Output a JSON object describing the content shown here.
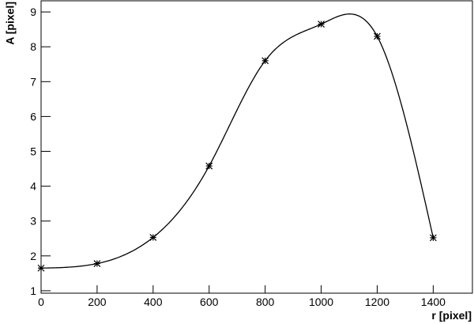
{
  "chart_data": {
    "type": "scatter",
    "curve": "spline",
    "x_label": "r [pixel]",
    "y_label": "A [pixel]",
    "x": [
      0,
      200,
      400,
      600,
      800,
      1000,
      1200,
      1400
    ],
    "values": [
      1.65,
      1.78,
      2.53,
      4.58,
      7.6,
      8.65,
      8.3,
      2.52
    ],
    "color": "#000000",
    "xlim": [
      0,
      1540
    ],
    "ylim": [
      0.93,
      9.32
    ],
    "xticks": [
      0,
      200,
      400,
      600,
      800,
      1000,
      1200,
      1400
    ],
    "yticks": [
      1,
      2,
      3,
      4,
      5,
      6,
      7,
      8,
      9
    ]
  }
}
